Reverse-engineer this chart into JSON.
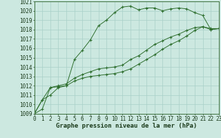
{
  "x": [
    0,
    1,
    2,
    3,
    4,
    5,
    6,
    7,
    8,
    9,
    10,
    11,
    12,
    13,
    14,
    15,
    16,
    17,
    18,
    19,
    20,
    21,
    22,
    23
  ],
  "line1": [
    1009,
    1010.5,
    1011,
    1011.8,
    1012,
    1014.8,
    1015.8,
    1016.9,
    1018.4,
    1019,
    1019.8,
    1020.4,
    1020.5,
    1020.1,
    1020.3,
    1020.3,
    1020.0,
    1020.2,
    1020.3,
    1020.2,
    1019.8,
    1019.5,
    1018.0,
    1018.1
  ],
  "line2": [
    1009,
    1010.5,
    1011.8,
    1012.0,
    1012.2,
    1012.8,
    1013.2,
    1013.5,
    1013.8,
    1013.9,
    1014.0,
    1014.2,
    1014.8,
    1015.2,
    1015.8,
    1016.4,
    1016.8,
    1017.2,
    1017.5,
    1017.9,
    1018.2,
    1018.3,
    1018.1,
    1018.1
  ],
  "line3": [
    1009,
    1009.5,
    1011.8,
    1011.9,
    1012.0,
    1012.5,
    1012.8,
    1013.0,
    1013.1,
    1013.2,
    1013.3,
    1013.5,
    1013.8,
    1014.3,
    1014.8,
    1015.3,
    1015.9,
    1016.4,
    1016.8,
    1017.3,
    1017.9,
    1018.3,
    1018.0,
    1018.1
  ],
  "bg_color": "#cce8e0",
  "grid_color": "#a8cfc7",
  "line_color": "#2d6e2d",
  "xlabel": "Graphe pression niveau de la mer (hPa)",
  "ylim_min": 1009,
  "ylim_max": 1021,
  "xlim_min": 0,
  "xlim_max": 23,
  "tick_fontsize": 5.5,
  "xlabel_fontsize": 6.5
}
